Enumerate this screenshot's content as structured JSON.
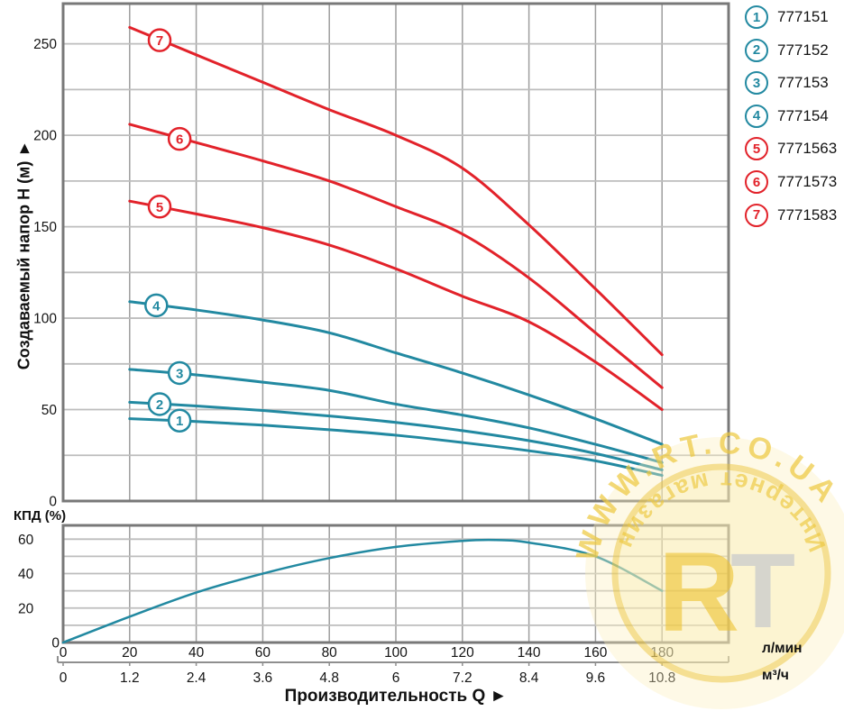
{
  "colors": {
    "teal": "#2289a1",
    "red": "#e2222a",
    "grid_horizontal": "#bdbdbd",
    "grid_vertical": "#9e9e9e",
    "plot_border": "#787878",
    "text": "#141414",
    "watermark_gold": "#edc83d",
    "watermark_silver": "#c2c6cb"
  },
  "legend": {
    "items": [
      {
        "number": "1",
        "code": "777151",
        "color": "#2289a1"
      },
      {
        "number": "2",
        "code": "777152",
        "color": "#2289a1"
      },
      {
        "number": "3",
        "code": "777153",
        "color": "#2289a1"
      },
      {
        "number": "4",
        "code": "777154",
        "color": "#2289a1"
      },
      {
        "number": "5",
        "code": "7771563",
        "color": "#e2222a"
      },
      {
        "number": "6",
        "code": "7771573",
        "color": "#e2222a"
      },
      {
        "number": "7",
        "code": "7771583",
        "color": "#e2222a"
      }
    ]
  },
  "watermark": {
    "arc_top": "WWW.RT.CO.UA",
    "letter_r": "R",
    "letter_t": "T",
    "arc_bottom": "Интернет магазин"
  },
  "chart_data": [
    {
      "type": "line",
      "title": "",
      "ylabel": "Создаваемый напор H (м) ►",
      "xlabel": "Производительность Q ►",
      "x_units": [
        "л/мин",
        "м³/ч"
      ],
      "xlim": [
        0,
        200
      ],
      "ylim": [
        0,
        272
      ],
      "x_grid_step": 20,
      "y_grid_step": 25,
      "x_tick_values": [
        0,
        20,
        40,
        60,
        80,
        100,
        120,
        140,
        160,
        180
      ],
      "x_tick_labels_lmin": [
        "0",
        "20",
        "40",
        "60",
        "80",
        "100",
        "120",
        "140",
        "160",
        "180"
      ],
      "x_tick_labels_m3h": [
        "0",
        "1.2",
        "2.4",
        "3.6",
        "4.8",
        "6",
        "7.2",
        "8.4",
        "9.6",
        "10.8"
      ],
      "y_tick_values": [
        0,
        50,
        100,
        150,
        200,
        250
      ],
      "y_tick_labels": [
        "0",
        "50",
        "100",
        "150",
        "200",
        "250"
      ],
      "series": [
        {
          "marker_label": "1",
          "code": "777151",
          "color": "#2289a1",
          "marker_q": 35,
          "marker_h": 44,
          "points": [
            [
              20,
              45
            ],
            [
              40,
              43.5
            ],
            [
              60,
              41.5
            ],
            [
              80,
              39
            ],
            [
              100,
              36
            ],
            [
              120,
              32
            ],
            [
              140,
              27.5
            ],
            [
              160,
              22
            ],
            [
              180,
              14
            ]
          ]
        },
        {
          "marker_label": "2",
          "code": "777152",
          "color": "#2289a1",
          "marker_q": 29,
          "marker_h": 53,
          "points": [
            [
              20,
              54
            ],
            [
              40,
              52
            ],
            [
              60,
              49.5
            ],
            [
              80,
              46.5
            ],
            [
              100,
              43
            ],
            [
              120,
              38.5
            ],
            [
              140,
              33
            ],
            [
              160,
              26
            ],
            [
              180,
              17
            ]
          ]
        },
        {
          "marker_label": "3",
          "code": "777153",
          "color": "#2289a1",
          "marker_q": 35,
          "marker_h": 70,
          "points": [
            [
              20,
              72
            ],
            [
              40,
              69
            ],
            [
              60,
              65
            ],
            [
              80,
              60.5
            ],
            [
              100,
              53
            ],
            [
              120,
              47
            ],
            [
              140,
              40
            ],
            [
              160,
              31
            ],
            [
              180,
              21
            ]
          ]
        },
        {
          "marker_label": "4",
          "code": "777154",
          "color": "#2289a1",
          "marker_q": 28,
          "marker_h": 107,
          "points": [
            [
              20,
              109
            ],
            [
              40,
              104.5
            ],
            [
              60,
              99
            ],
            [
              80,
              92
            ],
            [
              100,
              81
            ],
            [
              120,
              70
            ],
            [
              140,
              58
            ],
            [
              160,
              45
            ],
            [
              180,
              31
            ]
          ]
        },
        {
          "marker_label": "5",
          "code": "7771563",
          "color": "#e2222a",
          "marker_q": 29,
          "marker_h": 161,
          "points": [
            [
              20,
              164
            ],
            [
              40,
              157
            ],
            [
              60,
              149.5
            ],
            [
              80,
              140
            ],
            [
              100,
              127
            ],
            [
              120,
              112
            ],
            [
              140,
              98
            ],
            [
              160,
              76
            ],
            [
              180,
              50
            ]
          ]
        },
        {
          "marker_label": "6",
          "code": "7771573",
          "color": "#e2222a",
          "marker_q": 35,
          "marker_h": 198,
          "points": [
            [
              20,
              206
            ],
            [
              40,
              196
            ],
            [
              60,
              186
            ],
            [
              80,
              175
            ],
            [
              100,
              161
            ],
            [
              120,
              146
            ],
            [
              140,
              122
            ],
            [
              160,
              92
            ],
            [
              180,
              62
            ]
          ]
        },
        {
          "marker_label": "7",
          "code": "7771583",
          "color": "#e2222a",
          "marker_q": 29,
          "marker_h": 252,
          "points": [
            [
              20,
              259
            ],
            [
              40,
              244
            ],
            [
              60,
              229
            ],
            [
              80,
              214
            ],
            [
              100,
              200
            ],
            [
              120,
              182
            ],
            [
              140,
              151
            ],
            [
              160,
              116
            ],
            [
              180,
              80
            ]
          ]
        }
      ]
    },
    {
      "type": "line",
      "title": "",
      "ylabel": "КПД (%)",
      "xlabel": "Производительность Q ►",
      "xlim": [
        0,
        200
      ],
      "ylim": [
        0,
        68
      ],
      "x_grid_step": 20,
      "y_grid_step": 10,
      "y_tick_values": [
        0,
        20,
        40,
        60
      ],
      "y_tick_labels": [
        "0",
        "20",
        "40",
        "60"
      ],
      "series": [
        {
          "name": "КПД",
          "color": "#2289a1",
          "points": [
            [
              0,
              0
            ],
            [
              20,
              15
            ],
            [
              40,
              29
            ],
            [
              60,
              40
            ],
            [
              80,
              49
            ],
            [
              100,
              55.5
            ],
            [
              120,
              59
            ],
            [
              130,
              59.5
            ],
            [
              140,
              58
            ],
            [
              160,
              50
            ],
            [
              180,
              30
            ]
          ]
        }
      ]
    }
  ]
}
